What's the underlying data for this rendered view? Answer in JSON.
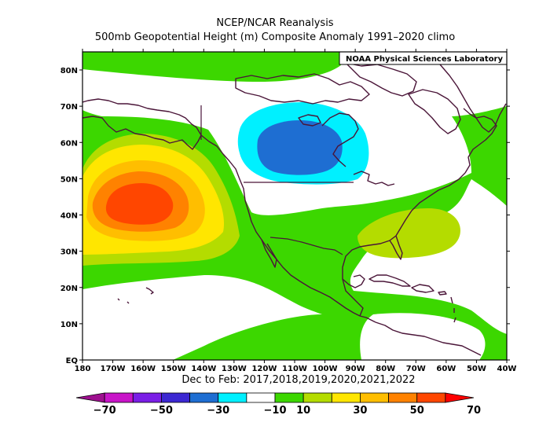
{
  "title": "NCEP/NCAR Reanalysis",
  "subtitle": "500mb Geopotential Height (m) Composite Anomaly 1991–2020 climo",
  "credit": "NOAA Physical Sciences Laboratory",
  "period": "Dec to Feb: 2017,2018,2019,2020,2021,2022",
  "lat_labels": [
    "80N",
    "70N",
    "60N",
    "50N",
    "40N",
    "30N",
    "20N",
    "10N",
    "EQ"
  ],
  "lon_labels": [
    "180",
    "170W",
    "160W",
    "150W",
    "140W",
    "130W",
    "120W",
    "110W",
    "100W",
    "90W",
    "80W",
    "70W",
    "60W",
    "50W",
    "40W"
  ],
  "colorbar": {
    "labels": [
      "−70",
      "−50",
      "−30",
      "−10",
      "10",
      "30",
      "50",
      "70"
    ],
    "bins": [
      {
        "range": "-70..-60",
        "color": "#9e0f8f"
      },
      {
        "range": "-60..-50",
        "color": "#c814c8"
      },
      {
        "range": "-50..-40",
        "color": "#7a1ee6"
      },
      {
        "range": "-40..-30",
        "color": "#3c28d2"
      },
      {
        "range": "-30..-20",
        "color": "#1e6ed2"
      },
      {
        "range": "-20..-10",
        "color": "#00f0ff"
      },
      {
        "range": "-10..10",
        "color": "#ffffff"
      },
      {
        "range": "10..20",
        "color": "#3cd700"
      },
      {
        "range": "20..30",
        "color": "#b4dc00"
      },
      {
        "range": "30..40",
        "color": "#ffe600"
      },
      {
        "range": "40..50",
        "color": "#ffbe00"
      },
      {
        "range": "50..60",
        "color": "#ff8200"
      },
      {
        "range": "60..70",
        "color": "#ff4600"
      },
      {
        "range": ">70",
        "color": "#ff0000"
      }
    ]
  },
  "anomaly_features": [
    {
      "name": "north-pacific-positive",
      "center_lat": 44,
      "center_lon": -159,
      "max_bin": "60..70"
    },
    {
      "name": "central-canada-negative",
      "center_lat": 58,
      "center_lon": -108,
      "max_bin": "-30..-20"
    },
    {
      "name": "western-atlantic-positive",
      "center_lat": 32,
      "center_lon": -70,
      "max_bin": "20..30"
    }
  ]
}
